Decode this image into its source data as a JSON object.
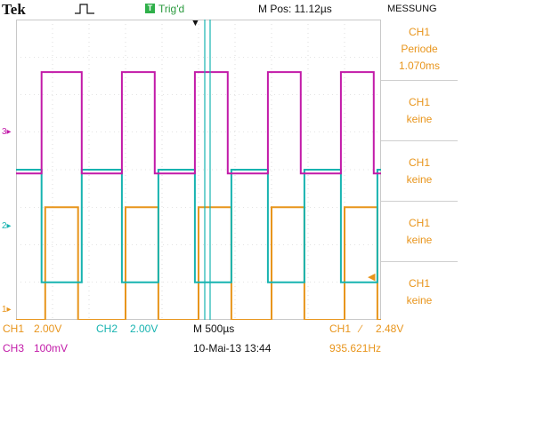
{
  "header": {
    "brand": "Tek",
    "acquire_icon": "pulse-waveform-icon",
    "trigger_badge": "T",
    "trigger_status": "Trig'd",
    "horizontal_position": "M Pos: 11.12µs",
    "menu_title": "MESSUNG"
  },
  "measure_menu": [
    {
      "source": "CH1",
      "type": "Periode",
      "value": "1.070ms"
    },
    {
      "source": "CH1",
      "type": "keine",
      "value": ""
    },
    {
      "source": "CH1",
      "type": "keine",
      "value": ""
    },
    {
      "source": "CH1",
      "type": "keine",
      "value": ""
    },
    {
      "source": "CH1",
      "type": "keine",
      "value": ""
    }
  ],
  "channel_markers": {
    "ch3": "3▸",
    "ch2": "2▸",
    "ch1": "1▸"
  },
  "bottom_bar": {
    "ch1_label": "CH1",
    "ch1_scale": "2.00V",
    "ch2_label": "CH2",
    "ch2_scale": "2.00V",
    "ch3_label": "CH3",
    "ch3_scale": "100mV",
    "timebase": "M 500µs",
    "date_time": "10-Mai-13 13:44",
    "trigger_source": "CH1",
    "trigger_slope": "∕",
    "trigger_level": "2.48V",
    "frequency": "935.621Hz"
  },
  "colors": {
    "ch1": "#e8951c",
    "ch2": "#17b3b0",
    "ch3": "#c21aa8",
    "grid": "#c8c8c8",
    "trigger": "#2fb04a"
  },
  "waveforms": {
    "ch1": {
      "low_div": 0.0,
      "high_div": 3.0,
      "rises": [
        0.8,
        3.0,
        5.0,
        7.0,
        9.0
      ],
      "falls": [
        1.7,
        3.9,
        5.9,
        7.9,
        9.9
      ]
    },
    "ch2": {
      "low_div": 1.0,
      "high_div": 4.0,
      "rises": [
        1.8,
        3.9,
        5.9,
        7.9,
        9.9
      ],
      "falls": [
        0.7,
        2.9,
        4.9,
        6.9,
        8.9
      ]
    },
    "ch3": {
      "low_div": 3.9,
      "high_div": 6.6,
      "rises": [
        0.7,
        2.9,
        4.9,
        6.9,
        8.9
      ],
      "falls": [
        1.8,
        3.8,
        5.8,
        7.8,
        9.8
      ]
    }
  }
}
